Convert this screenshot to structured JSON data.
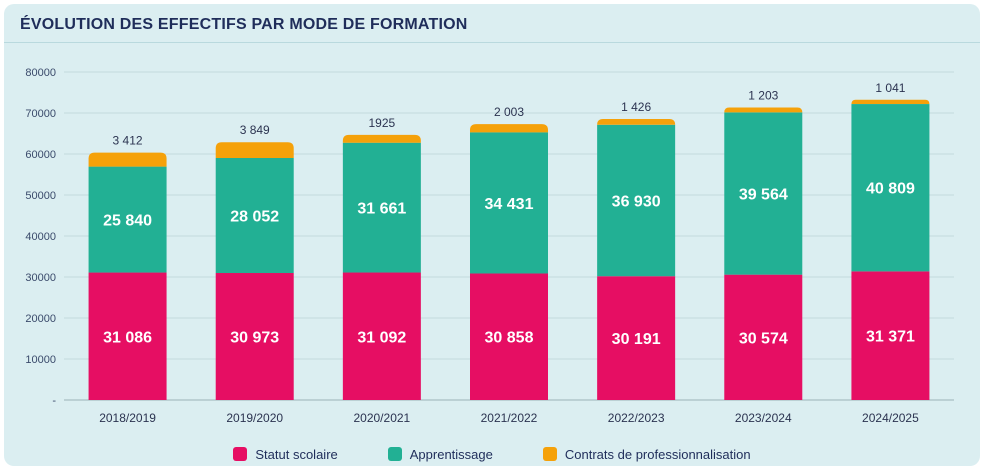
{
  "chart_data": {
    "type": "bar",
    "stacked": true,
    "title": "ÉVOLUTION DES EFFECTIFS PAR MODE DE FORMATION",
    "categories": [
      "2018/2019",
      "2019/2020",
      "2020/2021",
      "2021/2022",
      "2022/2023",
      "2023/2024",
      "2024/2025"
    ],
    "series": [
      {
        "name": "Statut scolaire",
        "color": "#e60e63",
        "values": [
          31086,
          30973,
          31092,
          30858,
          30191,
          30574,
          31371
        ],
        "labels": [
          "31 086",
          "30 973",
          "31 092",
          "30 858",
          "30 191",
          "30 574",
          "31 371"
        ]
      },
      {
        "name": "Apprentissage",
        "color": "#22b094",
        "values": [
          25840,
          28052,
          31661,
          34431,
          36930,
          39564,
          40809
        ],
        "labels": [
          "25 840",
          "28 052",
          "31 661",
          "34 431",
          "36 930",
          "39 564",
          "40 809"
        ]
      },
      {
        "name": "Contrats de professionnalisation",
        "color": "#f5a10a",
        "values": [
          3412,
          3849,
          1925,
          2003,
          1426,
          1203,
          1041
        ],
        "labels": [
          "3 412",
          "3 849",
          "1925",
          "2 003",
          "1 426",
          "1 203",
          "1 041"
        ]
      }
    ],
    "ylim": [
      0,
      80000
    ],
    "yticks": [
      0,
      10000,
      20000,
      30000,
      40000,
      50000,
      60000,
      70000,
      80000
    ],
    "ytick_labels": [
      "-",
      "10000",
      "20000",
      "30000",
      "40000",
      "50000",
      "60000",
      "70000",
      "80000"
    ],
    "grid": true,
    "legend_position": "bottom"
  }
}
